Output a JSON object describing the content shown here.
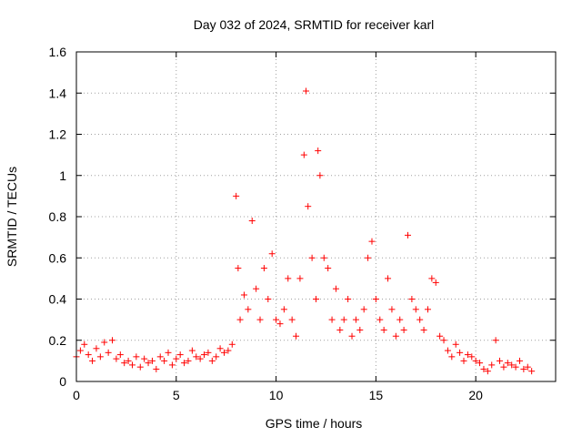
{
  "chart_data": {
    "type": "scatter",
    "title": "Day 032 of 2024, SRMTID for receiver karl",
    "xlabel": "GPS time / hours",
    "ylabel": "SRMTID / TECUs",
    "xlim": [
      0,
      24
    ],
    "ylim": [
      0,
      1.6
    ],
    "xticks": [
      0,
      5,
      10,
      15,
      20
    ],
    "xtick_labels": [
      "0",
      "5",
      "10",
      "15",
      "20"
    ],
    "yticks": [
      0,
      0.2,
      0.4,
      0.6,
      0.8,
      1,
      1.2,
      1.4,
      1.6
    ],
    "ytick_labels": [
      "0",
      "0.2",
      "0.4",
      "0.6",
      "0.8",
      "1",
      "1.2",
      "1.4",
      "1.6"
    ],
    "grid": true,
    "marker": "+",
    "series": [
      {
        "name": "SRMTID",
        "color": "#ff0000",
        "x": [
          0.0,
          0.2,
          0.4,
          0.6,
          0.8,
          1.0,
          1.2,
          1.4,
          1.6,
          1.8,
          2.0,
          2.2,
          2.4,
          2.6,
          2.8,
          3.0,
          3.2,
          3.4,
          3.6,
          3.8,
          4.0,
          4.2,
          4.4,
          4.6,
          4.8,
          5.0,
          5.2,
          5.4,
          5.6,
          5.8,
          6.0,
          6.2,
          6.4,
          6.6,
          6.8,
          7.0,
          7.2,
          7.4,
          7.6,
          7.8,
          8.0,
          8.1,
          8.2,
          8.4,
          8.6,
          8.8,
          9.0,
          9.2,
          9.4,
          9.6,
          9.8,
          10.0,
          10.2,
          10.4,
          10.6,
          10.8,
          11.0,
          11.2,
          11.4,
          11.5,
          11.6,
          11.8,
          12.0,
          12.1,
          12.2,
          12.4,
          12.6,
          12.8,
          13.0,
          13.2,
          13.4,
          13.6,
          13.8,
          14.0,
          14.2,
          14.4,
          14.6,
          14.8,
          15.0,
          15.2,
          15.4,
          15.6,
          15.8,
          16.0,
          16.2,
          16.4,
          16.6,
          16.8,
          17.0,
          17.2,
          17.4,
          17.6,
          17.8,
          18.0,
          18.2,
          18.4,
          18.6,
          18.8,
          19.0,
          19.2,
          19.4,
          19.6,
          19.8,
          20.0,
          20.2,
          20.4,
          20.6,
          20.8,
          21.0,
          21.2,
          21.4,
          21.6,
          21.8,
          22.0,
          22.2,
          22.4,
          22.6,
          22.8
        ],
        "y": [
          0.12,
          0.15,
          0.18,
          0.13,
          0.1,
          0.16,
          0.12,
          0.19,
          0.14,
          0.2,
          0.11,
          0.13,
          0.09,
          0.1,
          0.08,
          0.12,
          0.07,
          0.11,
          0.09,
          0.1,
          0.06,
          0.12,
          0.1,
          0.14,
          0.08,
          0.11,
          0.13,
          0.09,
          0.1,
          0.15,
          0.12,
          0.11,
          0.13,
          0.14,
          0.1,
          0.12,
          0.16,
          0.14,
          0.15,
          0.18,
          0.9,
          0.55,
          0.3,
          0.42,
          0.35,
          0.78,
          0.45,
          0.3,
          0.55,
          0.4,
          0.62,
          0.3,
          0.28,
          0.35,
          0.5,
          0.3,
          0.22,
          0.5,
          1.1,
          1.41,
          0.85,
          0.6,
          0.4,
          1.12,
          1.0,
          0.6,
          0.55,
          0.3,
          0.45,
          0.25,
          0.3,
          0.4,
          0.22,
          0.3,
          0.25,
          0.35,
          0.6,
          0.68,
          0.4,
          0.3,
          0.25,
          0.5,
          0.35,
          0.22,
          0.3,
          0.25,
          0.71,
          0.4,
          0.35,
          0.3,
          0.25,
          0.35,
          0.5,
          0.48,
          0.22,
          0.2,
          0.15,
          0.12,
          0.18,
          0.14,
          0.1,
          0.13,
          0.12,
          0.1,
          0.09,
          0.06,
          0.05,
          0.08,
          0.2,
          0.1,
          0.07,
          0.09,
          0.08,
          0.07,
          0.1,
          0.06,
          0.07,
          0.05
        ]
      }
    ]
  }
}
